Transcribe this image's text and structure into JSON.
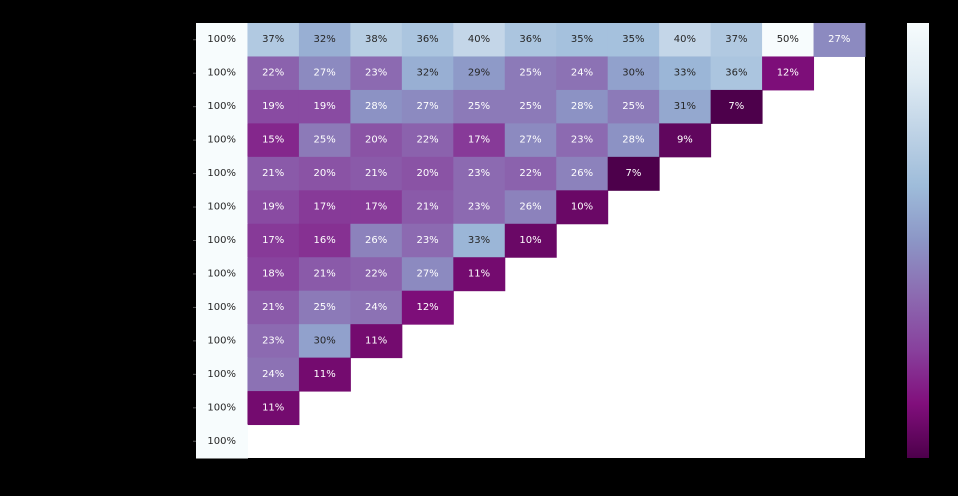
{
  "chart_data": {
    "type": "heatmap",
    "title": "",
    "xlabel": "",
    "ylabel": "",
    "colormap": "BuPu_r",
    "color_range": [
      0.07,
      0.5
    ],
    "colorbar": {
      "position": "right",
      "tick_labels": []
    },
    "grid": false,
    "rows": [
      {
        "values": [
          1.0,
          0.37,
          0.32,
          0.38,
          0.36,
          0.4,
          0.36,
          0.35,
          0.35,
          0.4,
          0.37,
          0.5,
          0.27
        ],
        "labels": [
          "100%",
          "37%",
          "32%",
          "38%",
          "36%",
          "40%",
          "36%",
          "35%",
          "35%",
          "40%",
          "37%",
          "50%",
          "27%"
        ]
      },
      {
        "values": [
          1.0,
          0.22,
          0.27,
          0.23,
          0.32,
          0.29,
          0.25,
          0.24,
          0.3,
          0.33,
          0.36,
          0.12
        ],
        "labels": [
          "100%",
          "22%",
          "27%",
          "23%",
          "32%",
          "29%",
          "25%",
          "24%",
          "30%",
          "33%",
          "36%",
          "12%"
        ]
      },
      {
        "values": [
          1.0,
          0.19,
          0.19,
          0.28,
          0.27,
          0.25,
          0.25,
          0.28,
          0.25,
          0.31,
          0.07
        ],
        "labels": [
          "100%",
          "19%",
          "19%",
          "28%",
          "27%",
          "25%",
          "25%",
          "28%",
          "25%",
          "31%",
          "7%"
        ]
      },
      {
        "values": [
          1.0,
          0.15,
          0.25,
          0.2,
          0.22,
          0.17,
          0.27,
          0.23,
          0.28,
          0.09
        ],
        "labels": [
          "100%",
          "15%",
          "25%",
          "20%",
          "22%",
          "17%",
          "27%",
          "23%",
          "28%",
          "9%"
        ]
      },
      {
        "values": [
          1.0,
          0.21,
          0.2,
          0.21,
          0.2,
          0.23,
          0.22,
          0.26,
          0.07
        ],
        "labels": [
          "100%",
          "21%",
          "20%",
          "21%",
          "20%",
          "23%",
          "22%",
          "26%",
          "7%"
        ]
      },
      {
        "values": [
          1.0,
          0.19,
          0.17,
          0.17,
          0.21,
          0.23,
          0.26,
          0.1
        ],
        "labels": [
          "100%",
          "19%",
          "17%",
          "17%",
          "21%",
          "23%",
          "26%",
          "10%"
        ]
      },
      {
        "values": [
          1.0,
          0.17,
          0.16,
          0.26,
          0.23,
          0.33,
          0.1
        ],
        "labels": [
          "100%",
          "17%",
          "16%",
          "26%",
          "23%",
          "33%",
          "10%"
        ]
      },
      {
        "values": [
          1.0,
          0.18,
          0.21,
          0.22,
          0.27,
          0.11
        ],
        "labels": [
          "100%",
          "18%",
          "21%",
          "22%",
          "27%",
          "11%"
        ]
      },
      {
        "values": [
          1.0,
          0.21,
          0.25,
          0.24,
          0.12
        ],
        "labels": [
          "100%",
          "21%",
          "25%",
          "24%",
          "12%"
        ]
      },
      {
        "values": [
          1.0,
          0.23,
          0.3,
          0.11
        ],
        "labels": [
          "100%",
          "23%",
          "30%",
          "11%"
        ]
      },
      {
        "values": [
          1.0,
          0.24,
          0.11
        ],
        "labels": [
          "100%",
          "24%",
          "11%"
        ]
      },
      {
        "values": [
          1.0,
          0.11
        ],
        "labels": [
          "100%",
          "11%"
        ]
      },
      {
        "values": [
          1.0
        ],
        "labels": [
          "100%"
        ]
      }
    ]
  }
}
